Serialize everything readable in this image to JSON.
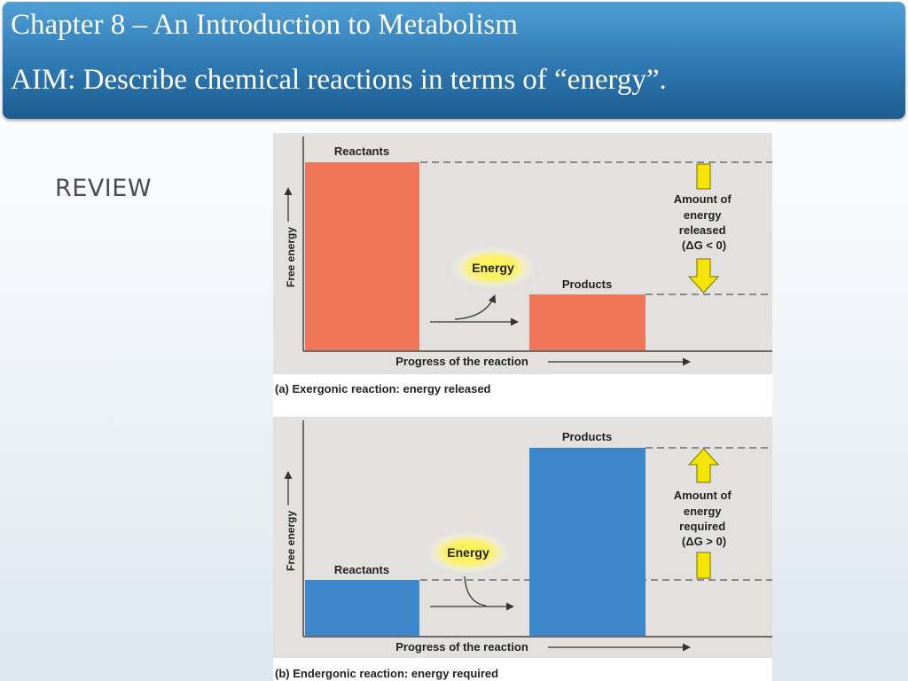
{
  "slide": {
    "title_line1": "Chapter 8 – An Introduction to Metabolism",
    "title_line2": "AIM: Describe chemical reactions in terms of “energy”.",
    "side_label": "REVIEW"
  },
  "figure": {
    "panel_a": {
      "caption": "(a) Exergonic reaction: energy released",
      "bar_color": "#f0765a",
      "reactants_label": "Reactants",
      "products_label": "Products",
      "energy_label": "Energy",
      "y_axis_label": "Free energy",
      "x_axis_label": "Progress of the reaction",
      "amount_lines": [
        "Amount of",
        "energy",
        "released",
        "(ΔG < 0)"
      ],
      "reactants_level": 1.0,
      "products_level": 0.29
    },
    "panel_b": {
      "caption": "(b) Endergonic reaction: energy required",
      "bar_color": "#3b87c9",
      "reactants_label": "Reactants",
      "products_label": "Products",
      "energy_label": "Energy",
      "y_axis_label": "Free energy",
      "x_axis_label": "Progress of the reaction",
      "amount_lines": [
        "Amount of",
        "energy",
        "required",
        "(ΔG > 0)"
      ],
      "reactants_level": 0.29,
      "products_level": 1.0
    }
  }
}
